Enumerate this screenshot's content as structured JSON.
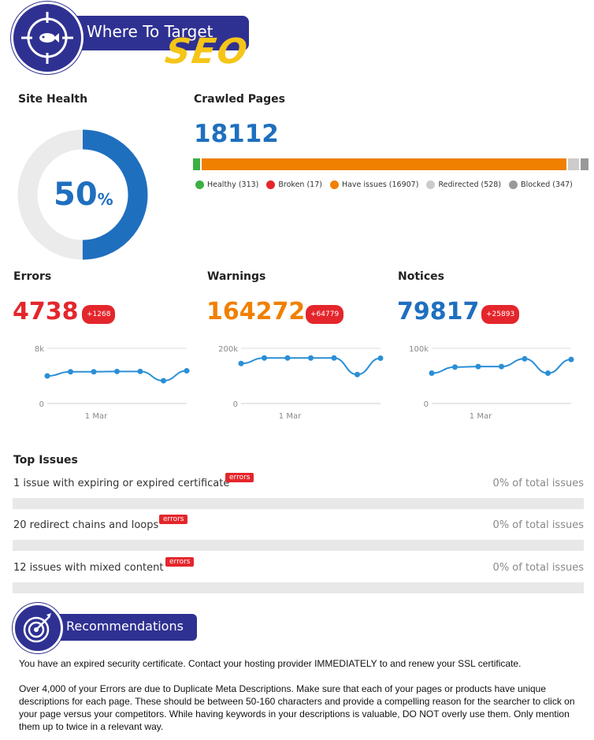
{
  "brand": {
    "title": "Where To Target",
    "accent": "SEO",
    "color": "#2f3192",
    "accent_color": "#f5c518"
  },
  "site_health": {
    "label": "Site Health",
    "value": "50",
    "unit": "%",
    "fraction": 0.5,
    "color": "#1f6fbf"
  },
  "crawled": {
    "label": "Crawled Pages",
    "total": "18112",
    "segments": [
      {
        "name": "Healthy",
        "count": 313,
        "color": "#3cb043",
        "legend": "Healthy (313)"
      },
      {
        "name": "Have issues",
        "count": 16907,
        "color": "#f08000",
        "legend": "Have issues (16907)"
      },
      {
        "name": "Redirected",
        "count": 528,
        "color": "#cccccc",
        "legend": "Redirected (528)"
      },
      {
        "name": "Blocked",
        "count": 347,
        "color": "#999999",
        "legend": "Blocked (347)"
      }
    ],
    "broken": {
      "name": "Broken",
      "count": 17,
      "color": "#e4262c",
      "legend": "Broken (17)"
    }
  },
  "metrics": {
    "errors": {
      "label": "Errors",
      "value": "4738",
      "delta": "+1268",
      "color": "#e4262c"
    },
    "warnings": {
      "label": "Warnings",
      "value": "164272",
      "delta": "+64779",
      "color": "#f08000"
    },
    "notices": {
      "label": "Notices",
      "value": "79817",
      "delta": "+25893",
      "color": "#1f6fbf"
    }
  },
  "chart_data": [
    {
      "type": "line",
      "title": "",
      "series": [
        {
          "values": [
            4000,
            4600,
            4600,
            4650,
            4650,
            3300,
            4738
          ]
        }
      ],
      "ylim": [
        0,
        8000
      ],
      "yticks": [
        "0",
        "8k"
      ],
      "xticks": [
        "1 Mar"
      ]
    },
    {
      "type": "line",
      "title": "",
      "series": [
        {
          "values": [
            145000,
            165000,
            165000,
            165000,
            165000,
            105000,
            164272
          ]
        }
      ],
      "ylim": [
        0,
        200000
      ],
      "yticks": [
        "0",
        "200k"
      ],
      "xticks": [
        "1 Mar"
      ]
    },
    {
      "type": "line",
      "title": "",
      "series": [
        {
          "values": [
            55000,
            66000,
            67000,
            67000,
            81000,
            55000,
            79817
          ]
        }
      ],
      "ylim": [
        0,
        100000
      ],
      "yticks": [
        "0",
        "100k"
      ],
      "xticks": [
        "1 Mar"
      ]
    }
  ],
  "top_issues": {
    "label": "Top Issues",
    "items": [
      {
        "text": "1 issue with expiring or expired certificate",
        "badge": "errors",
        "pct": "0% of total issues"
      },
      {
        "text": "20 redirect chains and loops",
        "badge": "errors",
        "pct": "0% of total issues"
      },
      {
        "text": "12 issues with mixed content",
        "badge": "errors",
        "pct": "0% of total issues"
      }
    ]
  },
  "recommendations": {
    "label": "Recommendations",
    "paragraphs": [
      "You have an expired security certificate. Contact your hosting provider IMMEDIATELY to and renew your SSL certificate.",
      "Over 4,000 of your Errors are due to Duplicate Meta Descriptions. Make sure that each of your pages or products have unique descriptions for each page. These should be between 50-160 characters and provide a compelling reason for the searcher to click on your page versus your competitors. While having keywords in your descriptions is valuable, DO NOT overly use them. Only mention them up to twice in a relevant way."
    ]
  }
}
